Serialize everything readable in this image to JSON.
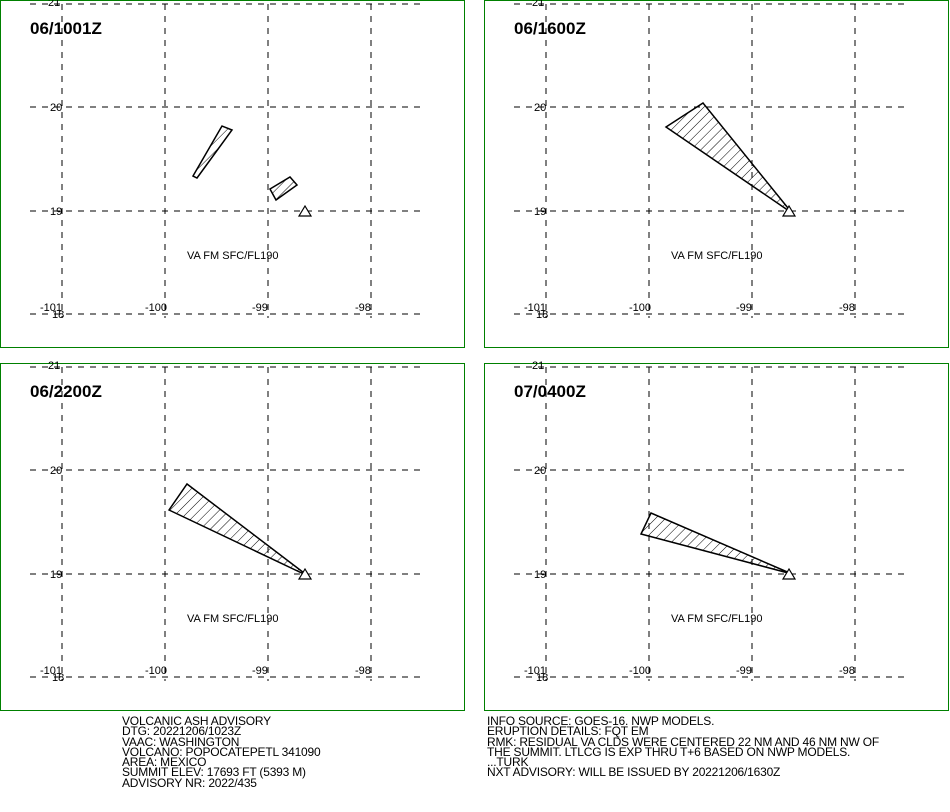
{
  "panels": [
    {
      "time": "06/1001Z",
      "layer": "VA FM SFC/FL190",
      "lon_labels": [
        "-101",
        "-100",
        "-99",
        "-98"
      ],
      "lat_labels": [
        "21",
        "20",
        "19",
        "18"
      ]
    },
    {
      "time": "06/1600Z",
      "layer": "VA FM SFC/FL190",
      "lon_labels": [
        "-101",
        "-100",
        "-99",
        "-98"
      ],
      "lat_labels": [
        "21",
        "20",
        "19",
        "18"
      ]
    },
    {
      "time": "06/2200Z",
      "layer": "VA FM SFC/FL190",
      "lon_labels": [
        "-101",
        "-100",
        "-99",
        "-98"
      ],
      "lat_labels": [
        "21",
        "20",
        "19",
        "18"
      ]
    },
    {
      "time": "07/0400Z",
      "layer": "VA FM SFC/FL190",
      "lon_labels": [
        "-101",
        "-100",
        "-99",
        "-98"
      ],
      "lat_labels": [
        "21",
        "20",
        "19",
        "18"
      ]
    }
  ],
  "advisory_left": [
    "VOLCANIC ASH ADVISORY",
    "DTG: 20221206/1023Z",
    "VAAC: WASHINGTON",
    "VOLCANO: POPOCATEPETL 341090",
    "AREA: MEXICO",
    "SUMMIT ELEV: 17693 FT (5393 M)",
    "ADVISORY NR: 2022/435"
  ],
  "advisory_right": [
    "INFO SOURCE: GOES-16. NWP MODELS.",
    "ERUPTION DETAILS: FQT EM",
    "RMK: RESIDUAL VA CLDS WERE CENTERED 22 NM AND 46 NM NW OF",
    "THE SUMMIT. LTLCG IS EXP THRU T+6 BASED ON NWP MODELS.",
    "...TURK",
    "NXT ADVISORY: WILL BE ISSUED BY 20221206/1630Z"
  ]
}
